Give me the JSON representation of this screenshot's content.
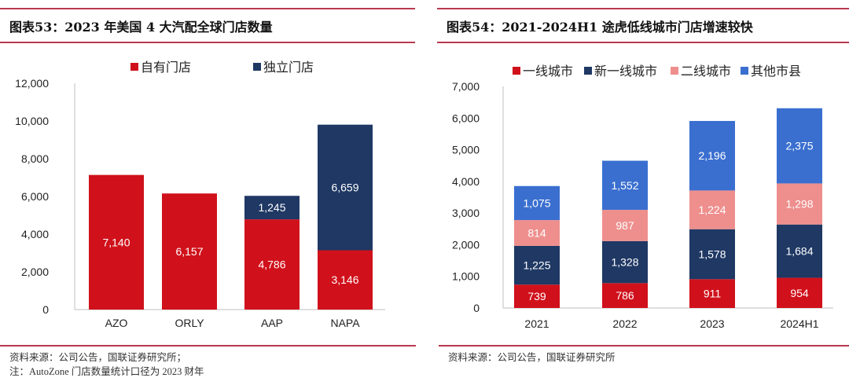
{
  "left": {
    "title": "图表53：2023 年美国 4 大汽配全球门店数量",
    "source": "资料来源：公司公告，国联证券研究所；",
    "note": "注：AutoZone 门店数量统计口径为 2023 财年"
  },
  "right": {
    "title": "图表54：2021-2024H1 途虎低线城市门店增速较快",
    "source": "资料来源：公司公告，国联证券研究所"
  },
  "chart_data": [
    {
      "type": "bar",
      "stacked": true,
      "categories": [
        "AZO",
        "ORLY",
        "AAP",
        "NAPA"
      ],
      "series": [
        {
          "name": "自有门店",
          "color": "#d0111b",
          "values": [
            7140,
            6157,
            4786,
            3146
          ],
          "labels": [
            "7,140",
            "6,157",
            "4,786",
            "3,146"
          ]
        },
        {
          "name": "独立门店",
          "color": "#1f3864",
          "values": [
            0,
            0,
            1245,
            6659
          ],
          "labels": [
            "",
            "",
            "1,245",
            "6,659"
          ]
        }
      ],
      "ylim": [
        0,
        12000
      ],
      "yticks": [
        "0",
        "2,000",
        "4,000",
        "6,000",
        "8,000",
        "10,000",
        "12,000"
      ],
      "legend": "top",
      "grid": false
    },
    {
      "type": "bar",
      "stacked": true,
      "categories": [
        "2021",
        "2022",
        "2023",
        "2024H1"
      ],
      "series": [
        {
          "name": "一线城市",
          "color": "#d0111b",
          "values": [
            739,
            786,
            911,
            954
          ],
          "labels": [
            "739",
            "786",
            "911",
            "954"
          ]
        },
        {
          "name": "新一线城市",
          "color": "#1f3864",
          "values": [
            1225,
            1328,
            1578,
            1684
          ],
          "labels": [
            "1,225",
            "1,328",
            "1,578",
            "1,684"
          ]
        },
        {
          "name": "二线城市",
          "color": "#ee8f8d",
          "values": [
            814,
            987,
            1224,
            1298
          ],
          "labels": [
            "814",
            "987",
            "1,224",
            "1,298"
          ]
        },
        {
          "name": "其他市县",
          "color": "#3a6fd0",
          "values": [
            1075,
            1552,
            2196,
            2375
          ],
          "labels": [
            "1,075",
            "1,552",
            "2,196",
            "2,375"
          ]
        }
      ],
      "ylim": [
        0,
        7000
      ],
      "yticks": [
        "0",
        "1,000",
        "2,000",
        "3,000",
        "4,000",
        "5,000",
        "6,000",
        "7,000"
      ],
      "legend": "top",
      "grid": false
    }
  ]
}
